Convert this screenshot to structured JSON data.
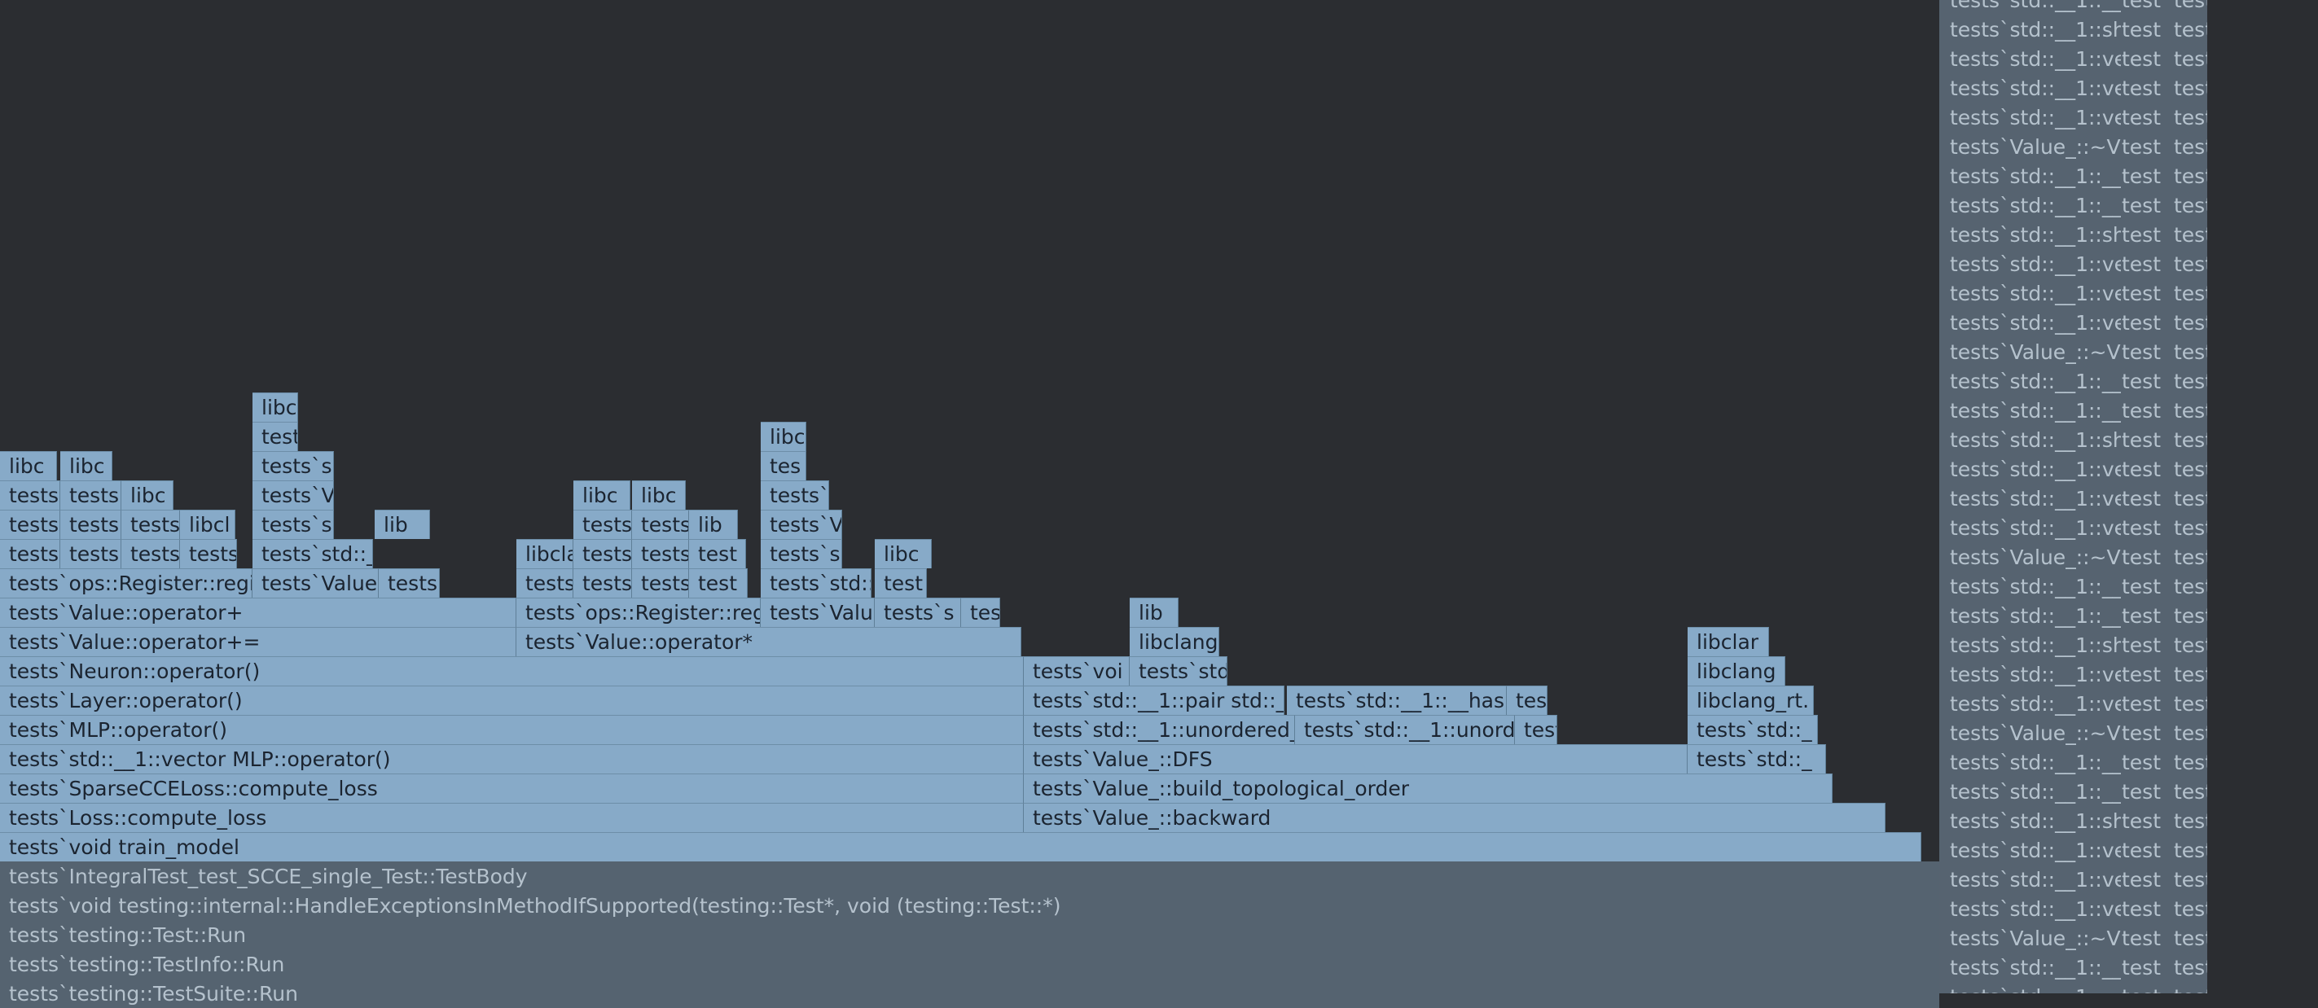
{
  "app": "Flame Graph profiler view",
  "colors": {
    "background": "#2b2d31",
    "frame_active": "#87aac8",
    "frame_dimmed": "#556370",
    "text_active": "#1b2430",
    "text_dimmed": "#b5c2cd"
  },
  "frames": {
    "train_model": "tests`void train_model",
    "compute_loss": "tests`Loss::compute_loss",
    "sparse_cce": "tests`SparseCCELoss::compute_loss",
    "vector_mlp": "tests`std::__1::vector MLP::operator()",
    "mlp_op": "tests`MLP::operator()",
    "layer_op": "tests`Layer::operator()",
    "neuron_op": "tests`Neuron::operator()",
    "value_plus_eq": "tests`Value::operator+=",
    "value_plus": "tests`Value::operator+",
    "ops_register_1": "tests`ops::Register::regi",
    "value_times": "tests`Value::operator*",
    "ops_register_2": "tests`ops::Register::reg",
    "backward": "tests`Value_::backward",
    "build_topo": "tests`Value_::build_topological_order",
    "dfs": "tests`Value_::DFS",
    "unordered_1": "tests`std::__1::unordered_",
    "unordered_2": "tests`std::__1::unorde",
    "pair": "tests`std::__1::pair std::__",
    "hash": "tests`std::__1::__hash",
    "tests_voi": "tests`voi",
    "tests_std": "tests`std",
    "tests_std_short": "tests`std::_",
    "tests_s": "tests`s",
    "tests_short": "tests`",
    "tests_tes": "tests",
    "tests_te": "tes",
    "tests_t": "test",
    "tests_V": "tests`V",
    "tests_Value": "tests`Value",
    "tests_Valu": "tests`Valu",
    "libc": "libc",
    "libclang": "libclang",
    "libcla": "libcla",
    "libclar": "libclar",
    "libclang_rt": "libclang_rt.",
    "lib": "lib",
    "libcl": "libcl",
    "libc_": "libc",
    "test": "test",
    "tests_std_x": "tests`std::_",
    "tests_tests": "tests",
    "tests_tests2": "tests"
  },
  "dimmed_frames": [
    "tests`IntegralTest_test_SCCE_single_Test::TestBody",
    "tests`void testing::internal::HandleExceptionsInMethodIfSupported(testing::Test*, void (testing::Test::*)",
    "tests`testing::Test::Run",
    "tests`testing::TestInfo::Run",
    "tests`testing::TestSuite::Run"
  ],
  "right_column": {
    "rows": [
      "tests`std::__1::__",
      "tests`std::__1::sh",
      "tests`std::__1::ve",
      "tests`std::__1::ve",
      "tests`std::__1::ve",
      "tests`Value_::~V",
      "tests`std::__1::__",
      "tests`std::__1::__",
      "tests`std::__1::sh",
      "tests`std::__1::ve",
      "tests`std::__1::ve",
      "tests`std::__1::ve",
      "tests`Value_::~V",
      "tests`std::__1::__",
      "tests`std::__1::__",
      "tests`std::__1::sh",
      "tests`std::__1::ve",
      "tests`std::__1::ve",
      "tests`std::__1::ve",
      "tests`Value_::~V",
      "tests`std::__1::__",
      "tests`std::__1::__",
      "tests`std::__1::sh",
      "tests`std::__1::ve",
      "tests`std::__1::ve",
      "tests`Value_::~V",
      "tests`std::__1::__",
      "tests`std::__1::__",
      "tests`std::__1::sh",
      "tests`std::__1::ve",
      "tests`std::__1::ve",
      "tests`std::__1::ve",
      "tests`Value_::~V",
      "tests`std::__1::__",
      "tests`std::__1::__"
    ],
    "col2": "test",
    "col3": "test"
  }
}
